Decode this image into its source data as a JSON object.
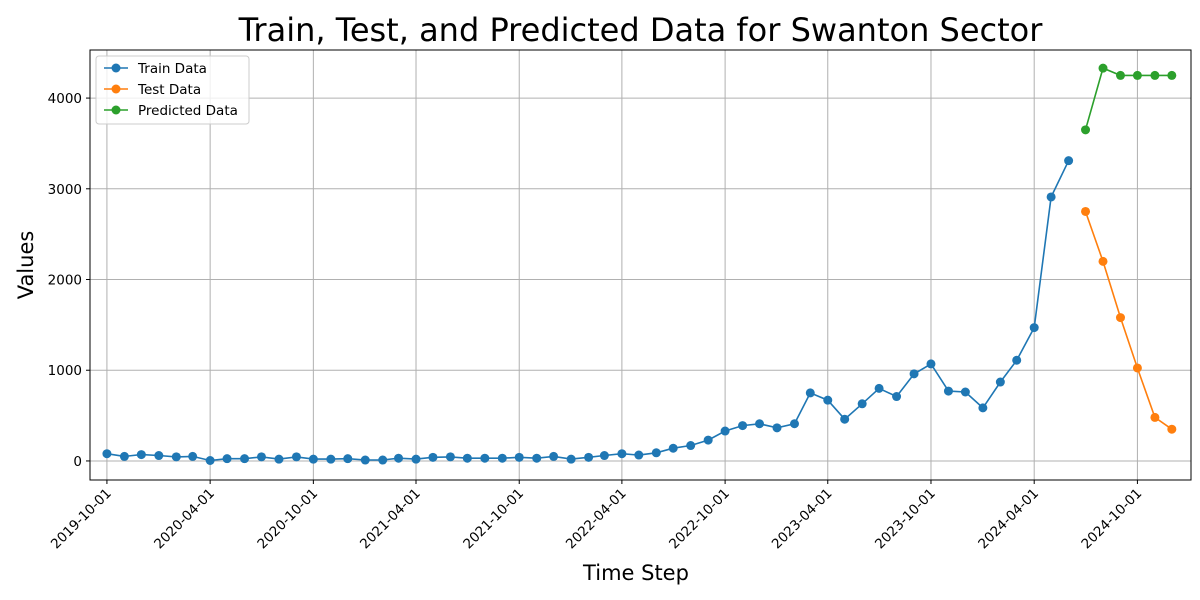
{
  "chart_data": {
    "type": "line",
    "title": "Train, Test, and Predicted Data for Swanton Sector",
    "xlabel": "Time Step",
    "ylabel": "Values",
    "x_ticks": [
      "2019-10-01",
      "2020-04-01",
      "2020-10-01",
      "2021-04-01",
      "2021-10-01",
      "2022-04-01",
      "2022-10-01",
      "2023-04-01",
      "2023-10-01",
      "2024-04-01",
      "2024-10-01"
    ],
    "y_ticks": [
      0,
      1000,
      2000,
      3000,
      4000
    ],
    "ylim": [
      -210,
      4530
    ],
    "xlim": [
      "2019-09-01",
      "2025-01-04"
    ],
    "grid": true,
    "legend_position": "upper left",
    "series": [
      {
        "name": "Train Data",
        "color": "#1f77b4",
        "points": [
          [
            "2019-10-01",
            80
          ],
          [
            "2019-11-01",
            50
          ],
          [
            "2019-12-01",
            70
          ],
          [
            "2020-01-01",
            60
          ],
          [
            "2020-02-01",
            45
          ],
          [
            "2020-03-01",
            50
          ],
          [
            "2020-04-01",
            5
          ],
          [
            "2020-05-01",
            25
          ],
          [
            "2020-06-01",
            25
          ],
          [
            "2020-07-01",
            45
          ],
          [
            "2020-08-01",
            20
          ],
          [
            "2020-09-01",
            45
          ],
          [
            "2020-10-01",
            20
          ],
          [
            "2020-11-01",
            20
          ],
          [
            "2020-12-01",
            25
          ],
          [
            "2021-01-01",
            10
          ],
          [
            "2021-02-01",
            10
          ],
          [
            "2021-03-01",
            30
          ],
          [
            "2021-04-01",
            20
          ],
          [
            "2021-05-01",
            40
          ],
          [
            "2021-06-01",
            45
          ],
          [
            "2021-07-01",
            30
          ],
          [
            "2021-08-01",
            30
          ],
          [
            "2021-09-01",
            30
          ],
          [
            "2021-10-01",
            40
          ],
          [
            "2021-11-01",
            30
          ],
          [
            "2021-12-01",
            50
          ],
          [
            "2022-01-01",
            20
          ],
          [
            "2022-02-01",
            40
          ],
          [
            "2022-03-01",
            60
          ],
          [
            "2022-04-01",
            80
          ],
          [
            "2022-05-01",
            65
          ],
          [
            "2022-06-01",
            90
          ],
          [
            "2022-07-01",
            140
          ],
          [
            "2022-08-01",
            170
          ],
          [
            "2022-09-01",
            230
          ],
          [
            "2022-10-01",
            330
          ],
          [
            "2022-11-01",
            390
          ],
          [
            "2022-12-01",
            410
          ],
          [
            "2023-01-01",
            365
          ],
          [
            "2023-02-01",
            410
          ],
          [
            "2023-03-01",
            750
          ],
          [
            "2023-04-01",
            670
          ],
          [
            "2023-05-01",
            460
          ],
          [
            "2023-06-01",
            630
          ],
          [
            "2023-07-01",
            800
          ],
          [
            "2023-08-01",
            710
          ],
          [
            "2023-09-01",
            960
          ],
          [
            "2023-10-01",
            1070
          ],
          [
            "2023-11-01",
            770
          ],
          [
            "2023-12-01",
            760
          ],
          [
            "2024-01-01",
            585
          ],
          [
            "2024-02-01",
            870
          ],
          [
            "2024-03-01",
            1110
          ],
          [
            "2024-04-01",
            1470
          ],
          [
            "2024-05-01",
            2910
          ],
          [
            "2024-06-01",
            3310
          ]
        ]
      },
      {
        "name": "Test Data",
        "color": "#ff7f0e",
        "points": [
          [
            "2024-07-01",
            2750
          ],
          [
            "2024-08-01",
            2200
          ],
          [
            "2024-09-01",
            1580
          ],
          [
            "2024-10-01",
            1025
          ],
          [
            "2024-11-01",
            480
          ],
          [
            "2024-12-01",
            350
          ]
        ]
      },
      {
        "name": "Predicted Data",
        "color": "#2ca02c",
        "points": [
          [
            "2024-07-01",
            3650
          ],
          [
            "2024-08-01",
            4330
          ],
          [
            "2024-09-01",
            4250
          ],
          [
            "2024-10-01",
            4250
          ],
          [
            "2024-11-01",
            4250
          ],
          [
            "2024-12-01",
            4250
          ]
        ]
      }
    ]
  }
}
